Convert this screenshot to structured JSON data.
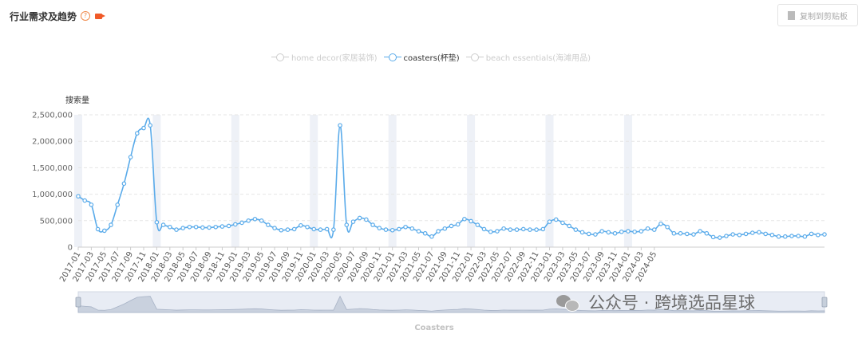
{
  "header": {
    "title": "行业需求及趋势",
    "help_icon": "question-circle-icon",
    "video_icon": "video-camera-icon"
  },
  "toolbar": {
    "copy_label": "复制到剪贴板",
    "copy_icon": "copy-icon"
  },
  "legend": [
    {
      "name": "home decor(家居装饰)",
      "active": false
    },
    {
      "name": "coasters(杯垫)",
      "active": true
    },
    {
      "name": "beach essentials(海滩用品)",
      "active": false
    }
  ],
  "slider": {
    "label": "Coasters"
  },
  "watermark": {
    "text": "公众号 · 跨境选品星球",
    "icon": "wechat-icon"
  },
  "chart_data": {
    "type": "line",
    "ylabel": "搜索量",
    "ylim": [
      0,
      2500000
    ],
    "yticks": [
      "0",
      "500,000",
      "1,000,000",
      "1,500,000",
      "2,000,000",
      "2,500,000"
    ],
    "x_tick_labels": [
      "2017-01",
      "2017-03",
      "2017-05",
      "2017-07",
      "2017-09",
      "2017-11",
      "2018-01",
      "2018-03",
      "2018-05",
      "2018-07",
      "2018-09",
      "2018-11",
      "2019-01",
      "2019-03",
      "2019-05",
      "2019-07",
      "2019-09",
      "2019-11",
      "2020-01",
      "2020-03",
      "2020-05",
      "2020-07",
      "2020-09",
      "2020-11",
      "2021-01",
      "2021-03",
      "2021-05",
      "2021-07",
      "2021-09",
      "2021-11",
      "2022-01",
      "2022-03",
      "2022-05",
      "2022-07",
      "2022-09",
      "2022-11",
      "2023-01",
      "2023-03",
      "2023-05",
      "2023-07",
      "2023-09",
      "2023-11",
      "2024-01",
      "2024-03",
      "2024-05"
    ],
    "grid": true,
    "legend_position": "top",
    "color": "#5aabea",
    "shaded_months": [
      "2017-01",
      "2018-01",
      "2019-01",
      "2020-01",
      "2021-01",
      "2022-01",
      "2023-01",
      "2024-01"
    ],
    "series": [
      {
        "name": "coasters(杯垫)",
        "start": "2017-01",
        "values": [
          960000,
          880000,
          800000,
          340000,
          310000,
          420000,
          800000,
          1200000,
          1700000,
          2150000,
          2250000,
          2300000,
          470000,
          420000,
          380000,
          330000,
          360000,
          380000,
          380000,
          370000,
          370000,
          380000,
          390000,
          400000,
          430000,
          460000,
          500000,
          530000,
          500000,
          420000,
          360000,
          320000,
          330000,
          340000,
          410000,
          380000,
          340000,
          330000,
          340000,
          330000,
          2300000,
          420000,
          480000,
          550000,
          520000,
          420000,
          360000,
          330000,
          320000,
          340000,
          380000,
          350000,
          300000,
          260000,
          200000,
          300000,
          350000,
          400000,
          430000,
          530000,
          490000,
          420000,
          340000,
          290000,
          300000,
          350000,
          330000,
          330000,
          340000,
          330000,
          330000,
          340000,
          480000,
          520000,
          460000,
          400000,
          330000,
          280000,
          250000,
          240000,
          300000,
          280000,
          260000,
          290000,
          300000,
          290000,
          300000,
          350000,
          330000,
          440000,
          380000,
          260000,
          260000,
          250000,
          240000,
          300000,
          260000,
          190000,
          180000,
          210000,
          240000,
          230000,
          250000,
          270000,
          280000,
          250000,
          230000,
          200000,
          200000,
          210000,
          210000,
          200000,
          250000,
          230000,
          240000
        ]
      }
    ]
  }
}
